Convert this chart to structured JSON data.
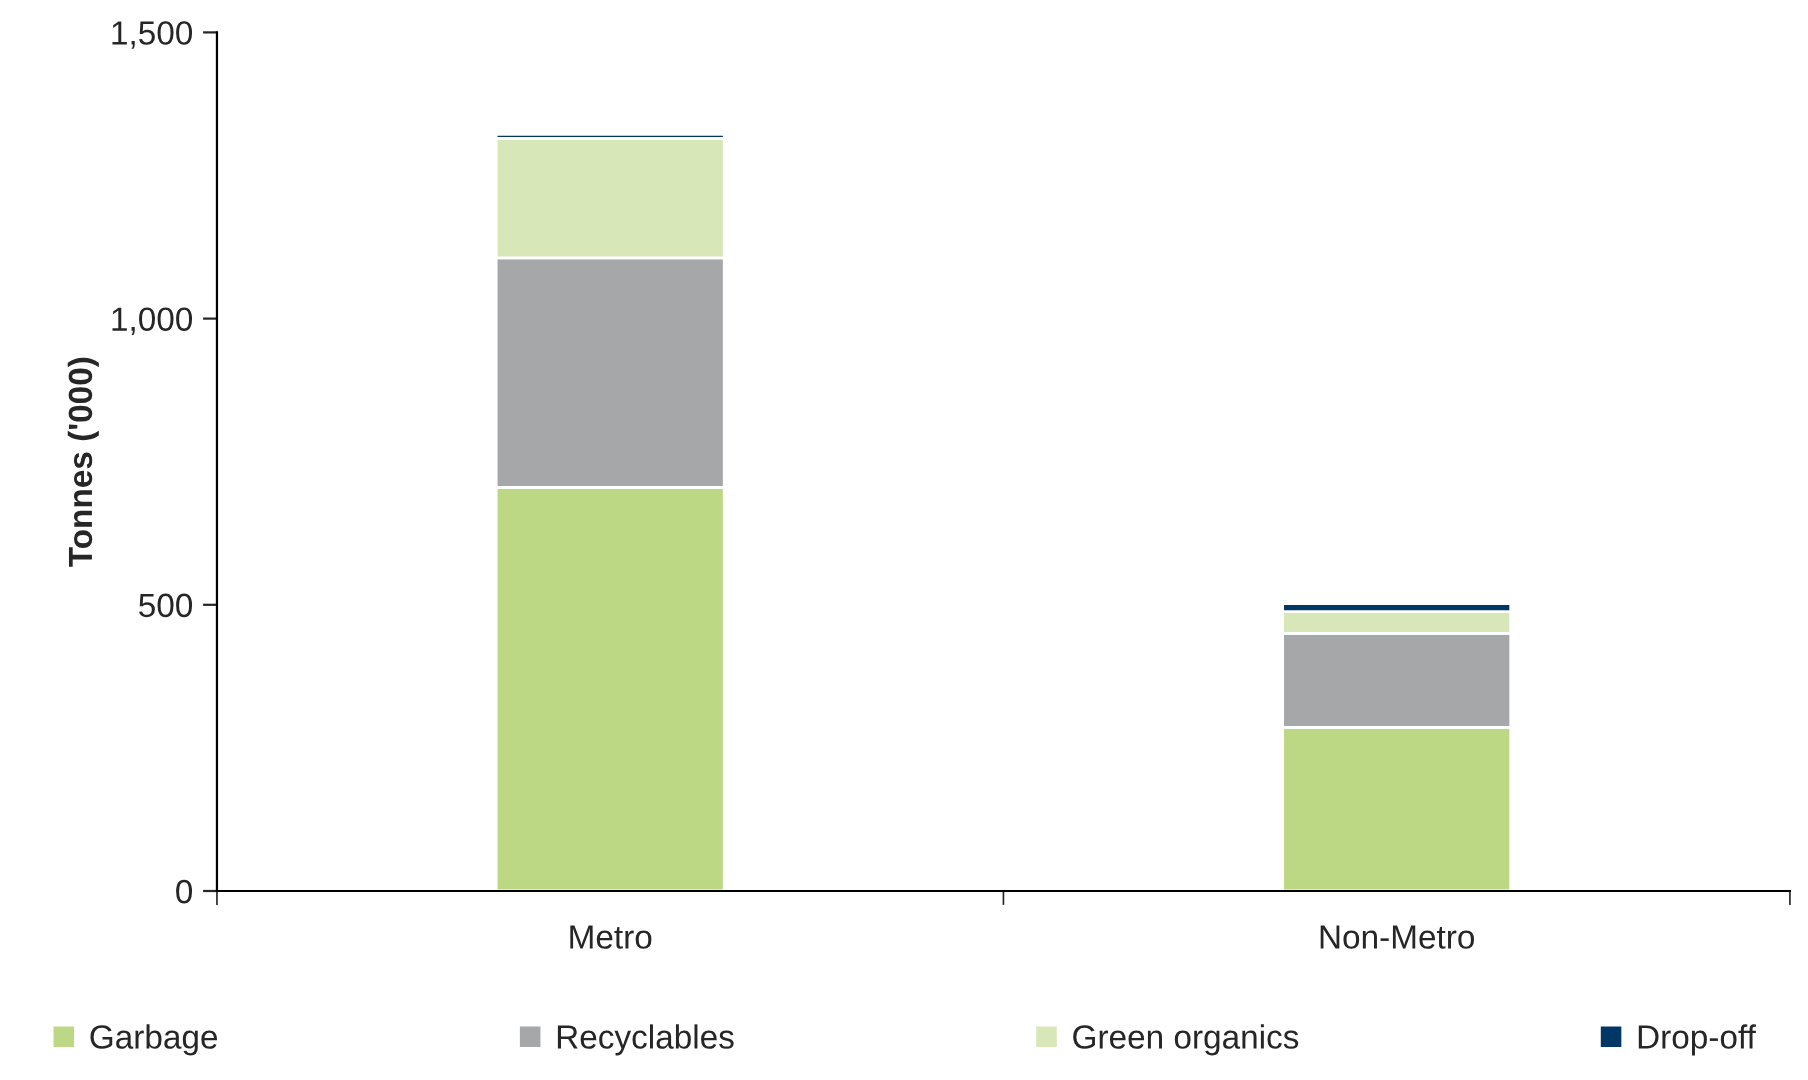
{
  "chart_data": {
    "type": "bar",
    "stacked": true,
    "ylabel": "Tonnes ('000)",
    "categories": [
      "Metro",
      "Non-Metro"
    ],
    "series": [
      {
        "name": "Garbage",
        "color": "#bdd885",
        "values": [
          705,
          286
        ]
      },
      {
        "name": "Recyclables",
        "color": "#a6a7a9",
        "values": [
          401,
          164
        ]
      },
      {
        "name": "Green organics",
        "color": "#d8e7b8",
        "values": [
          209,
          38
        ]
      },
      {
        "name": "Drop-off",
        "color": "#003764",
        "values": [
          7,
          14
        ]
      }
    ],
    "ylim": [
      0,
      1500
    ],
    "yticks": [
      0,
      {
        "value": 500,
        "label": "500"
      },
      {
        "value": 1000,
        "label": "1,000"
      },
      {
        "value": 1500,
        "label": "1,500"
      }
    ],
    "grid": false,
    "legend": "bottom"
  }
}
